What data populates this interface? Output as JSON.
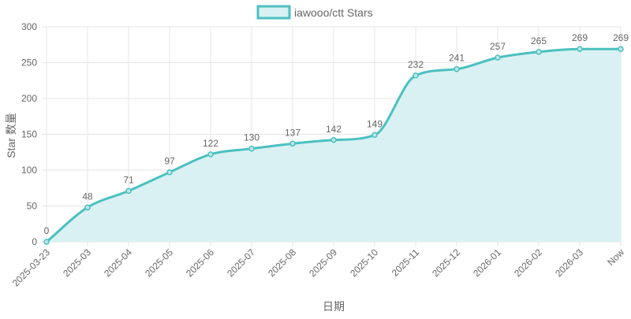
{
  "chart_data": {
    "type": "area",
    "title": "",
    "legend": {
      "label": "iawooo/ctt Stars",
      "position": "top-center"
    },
    "ylabel": "Star 数量",
    "xlabel": "日期",
    "ylim": [
      0,
      300
    ],
    "yticks": [
      0,
      50,
      100,
      150,
      200,
      250,
      300
    ],
    "grid": true,
    "categories": [
      "2025-03-23",
      "2025-03",
      "2025-04",
      "2025-05",
      "2025-06",
      "2025-07",
      "2025-08",
      "2025-09",
      "2025-10",
      "2025-11",
      "2025-12",
      "2026-01",
      "2026-02",
      "2026-03",
      "Now"
    ],
    "series": [
      {
        "name": "iawooo/ctt Stars",
        "values": [
          0,
          48,
          71,
          97,
          122,
          130,
          137,
          142,
          149,
          232,
          241,
          257,
          265,
          269,
          269
        ],
        "color": "#4bc0c0",
        "fill": "#d9f1f2"
      }
    ]
  }
}
